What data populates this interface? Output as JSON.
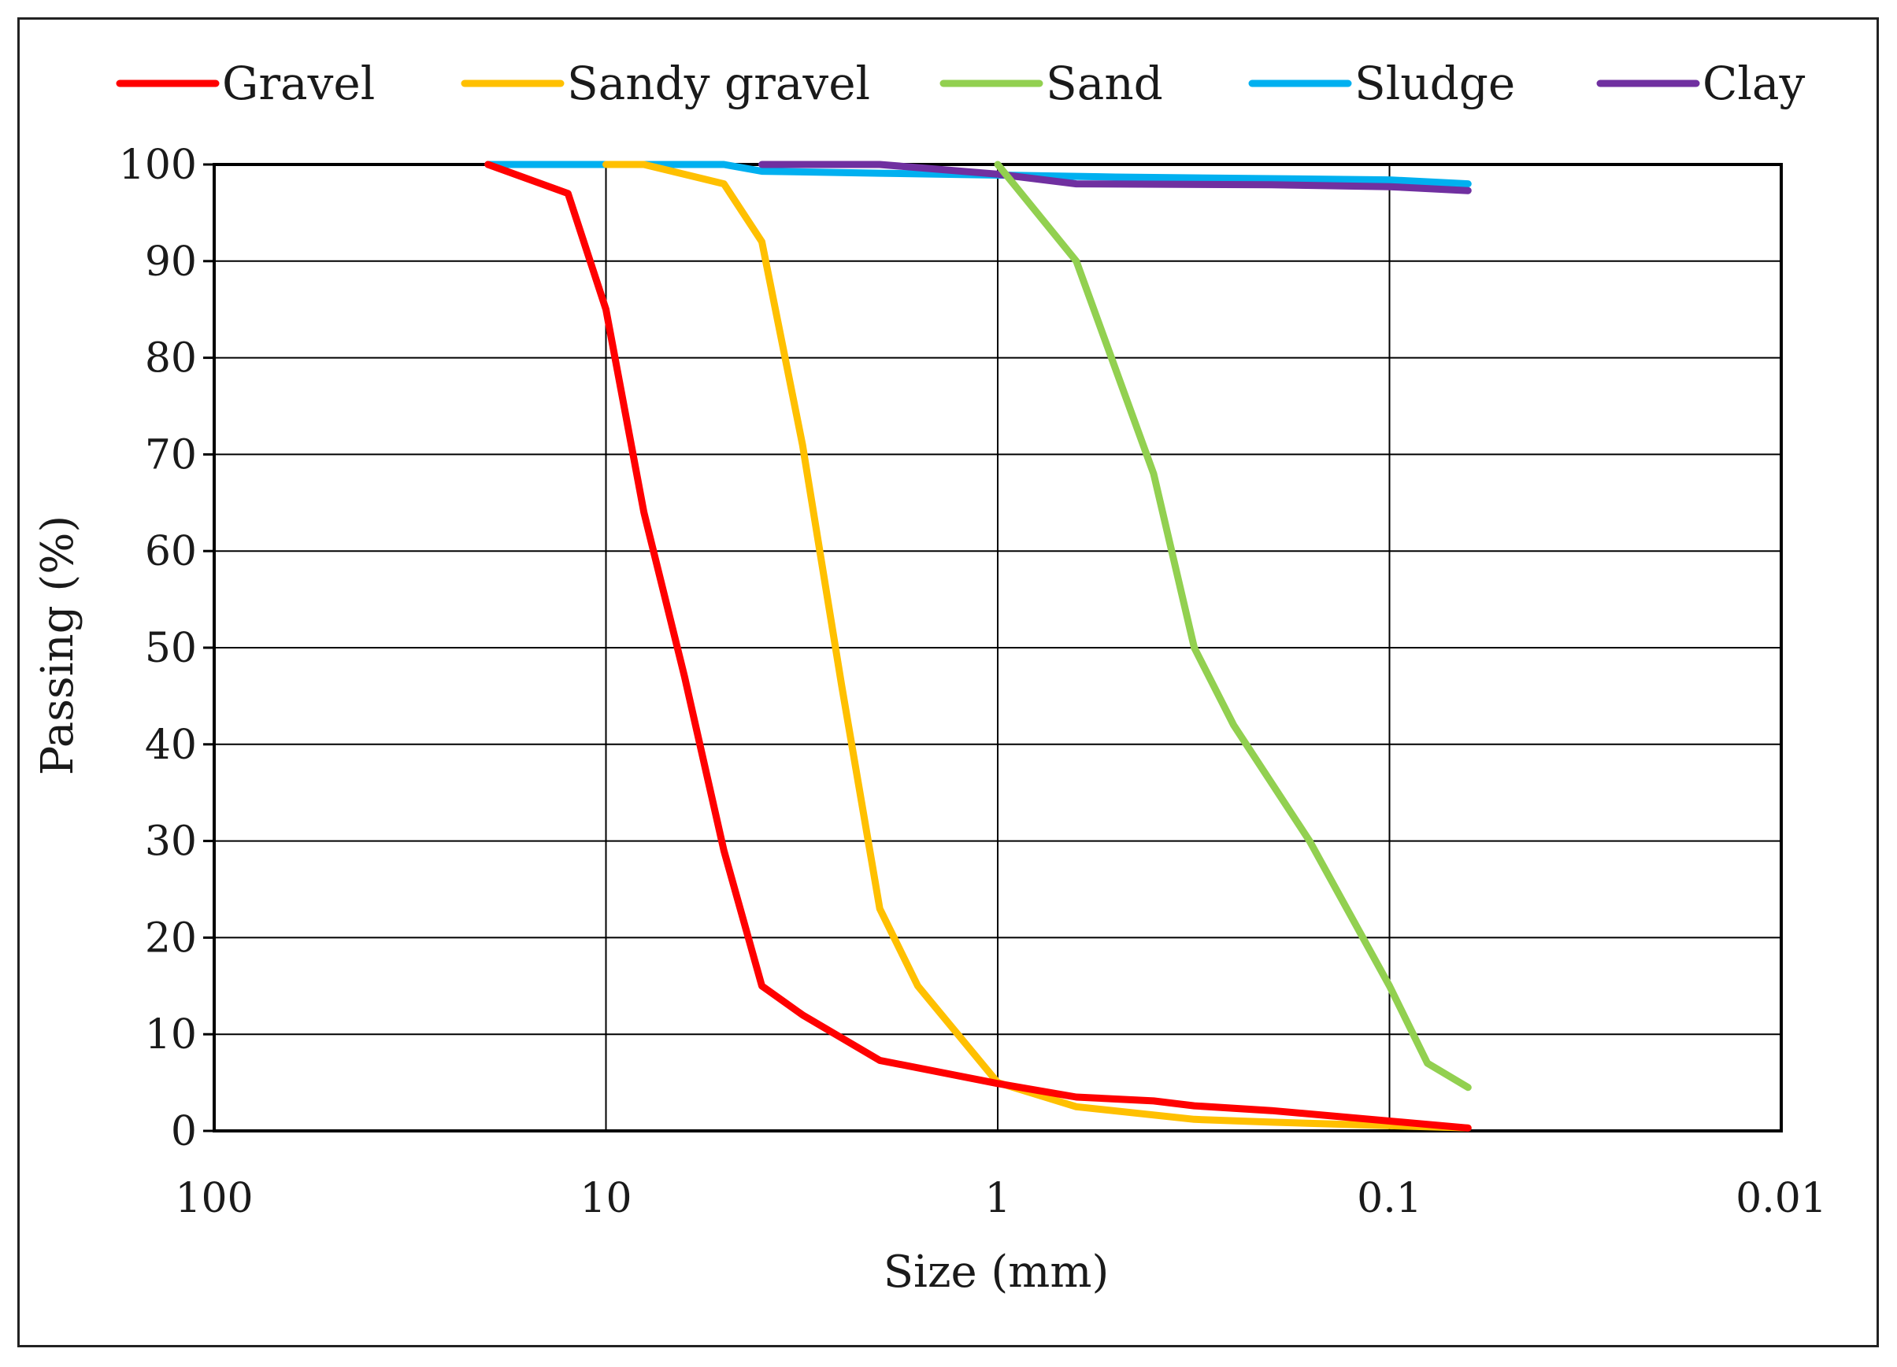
{
  "chart_data": {
    "type": "line",
    "title": "",
    "xlabel": "Size (mm)",
    "ylabel": "Passing (%)",
    "x_scale": "log",
    "x_reversed": true,
    "xlim": [
      100,
      0.01
    ],
    "ylim": [
      0,
      100
    ],
    "grid": true,
    "legend_position": "top",
    "x_ticks": [
      100,
      10,
      1,
      0.1,
      0.01
    ],
    "x_tick_labels": [
      "100",
      "10",
      "1",
      "0.1",
      "0.01"
    ],
    "y_ticks": [
      0,
      10,
      20,
      30,
      40,
      50,
      60,
      70,
      80,
      90,
      100
    ],
    "y_tick_labels": [
      "0",
      "10",
      "20",
      "30",
      "40",
      "50",
      "60",
      "70",
      "80",
      "90",
      "100"
    ],
    "series": [
      {
        "name": "Gravel",
        "color": "#ff0000",
        "x": [
          20,
          12.5,
          10,
          8,
          6.3,
          5,
          4,
          3.15,
          2,
          1,
          0.63,
          0.4,
          0.315,
          0.2,
          0.063
        ],
        "y": [
          100,
          97,
          85,
          64,
          47,
          29,
          15,
          12,
          7.3,
          4.9,
          3.5,
          3.1,
          2.6,
          2.1,
          0.3
        ]
      },
      {
        "name": "Sandy gravel",
        "color": "#ffc000",
        "x": [
          10,
          8,
          5,
          4,
          3.15,
          2.5,
          2,
          1.6,
          1,
          0.63,
          0.315,
          0.2,
          0.063
        ],
        "y": [
          100,
          100,
          98,
          92,
          71,
          46,
          23,
          15,
          5,
          2.5,
          1.2,
          0.9,
          0.3
        ]
      },
      {
        "name": "Sand",
        "color": "#92d050",
        "x": [
          1,
          0.63,
          0.4,
          0.315,
          0.25,
          0.16,
          0.1,
          0.08,
          0.063
        ],
        "y": [
          100,
          90,
          68,
          50,
          42,
          30,
          15,
          7,
          4.5
        ]
      },
      {
        "name": "Sludge",
        "color": "#00b0f0",
        "x": [
          20,
          10,
          5,
          4,
          2,
          1,
          0.5,
          0.1,
          0.063
        ],
        "y": [
          100,
          100,
          100,
          99.3,
          99.1,
          98.9,
          98.7,
          98.4,
          98
        ]
      },
      {
        "name": "Clay",
        "color": "#7030a0",
        "x": [
          4,
          2,
          1,
          0.63,
          0.2,
          0.1,
          0.063
        ],
        "y": [
          100,
          100,
          99,
          98,
          97.9,
          97.7,
          97.3
        ]
      }
    ]
  }
}
